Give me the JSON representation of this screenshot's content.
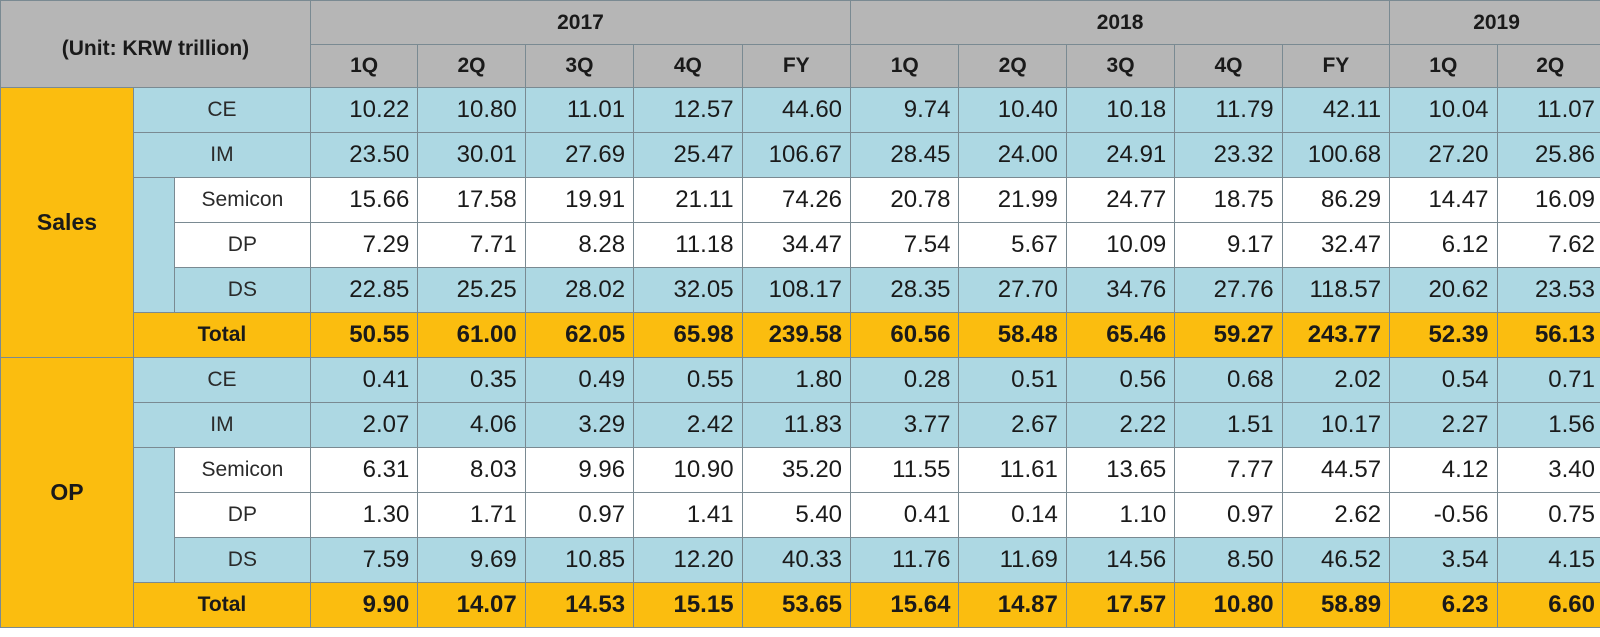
{
  "chart_data": {
    "type": "table",
    "unit_label": "(Unit: KRW trillion)",
    "years": [
      {
        "label": "2017",
        "span": 5
      },
      {
        "label": "2018",
        "span": 5
      },
      {
        "label": "2019",
        "span": 2
      }
    ],
    "columns": [
      "1Q",
      "2Q",
      "3Q",
      "4Q",
      "FY",
      "1Q",
      "2Q",
      "3Q",
      "4Q",
      "FY",
      "1Q",
      "2Q"
    ],
    "groups": [
      {
        "label": "Sales",
        "rows": [
          {
            "label": "CE",
            "kind": "main",
            "values": [
              "10.22",
              "10.80",
              "11.01",
              "12.57",
              "44.60",
              "9.74",
              "10.40",
              "10.18",
              "11.79",
              "42.11",
              "10.04",
              "11.07"
            ]
          },
          {
            "label": "IM",
            "kind": "main",
            "values": [
              "23.50",
              "30.01",
              "27.69",
              "25.47",
              "106.67",
              "28.45",
              "24.00",
              "24.91",
              "23.32",
              "100.68",
              "27.20",
              "25.86"
            ]
          },
          {
            "label": "Semicon",
            "kind": "sub",
            "values": [
              "15.66",
              "17.58",
              "19.91",
              "21.11",
              "74.26",
              "20.78",
              "21.99",
              "24.77",
              "18.75",
              "86.29",
              "14.47",
              "16.09"
            ]
          },
          {
            "label": "DP",
            "kind": "sub",
            "values": [
              "7.29",
              "7.71",
              "8.28",
              "11.18",
              "34.47",
              "7.54",
              "5.67",
              "10.09",
              "9.17",
              "32.47",
              "6.12",
              "7.62"
            ]
          },
          {
            "label": "DS",
            "kind": "sub-total",
            "values": [
              "22.85",
              "25.25",
              "28.02",
              "32.05",
              "108.17",
              "28.35",
              "27.70",
              "34.76",
              "27.76",
              "118.57",
              "20.62",
              "23.53"
            ]
          },
          {
            "label": "Total",
            "kind": "total",
            "values": [
              "50.55",
              "61.00",
              "62.05",
              "65.98",
              "239.58",
              "60.56",
              "58.48",
              "65.46",
              "59.27",
              "243.77",
              "52.39",
              "56.13"
            ]
          }
        ]
      },
      {
        "label": "OP",
        "rows": [
          {
            "label": "CE",
            "kind": "main",
            "values": [
              "0.41",
              "0.35",
              "0.49",
              "0.55",
              "1.80",
              "0.28",
              "0.51",
              "0.56",
              "0.68",
              "2.02",
              "0.54",
              "0.71"
            ]
          },
          {
            "label": "IM",
            "kind": "main",
            "values": [
              "2.07",
              "4.06",
              "3.29",
              "2.42",
              "11.83",
              "3.77",
              "2.67",
              "2.22",
              "1.51",
              "10.17",
              "2.27",
              "1.56"
            ]
          },
          {
            "label": "Semicon",
            "kind": "sub",
            "values": [
              "6.31",
              "8.03",
              "9.96",
              "10.90",
              "35.20",
              "11.55",
              "11.61",
              "13.65",
              "7.77",
              "44.57",
              "4.12",
              "3.40"
            ]
          },
          {
            "label": "DP",
            "kind": "sub",
            "values": [
              "1.30",
              "1.71",
              "0.97",
              "1.41",
              "5.40",
              "0.41",
              "0.14",
              "1.10",
              "0.97",
              "2.62",
              "-0.56",
              "0.75"
            ]
          },
          {
            "label": "DS",
            "kind": "sub-total",
            "values": [
              "7.59",
              "9.69",
              "10.85",
              "12.20",
              "40.33",
              "11.76",
              "11.69",
              "14.56",
              "8.50",
              "46.52",
              "3.54",
              "4.15"
            ]
          },
          {
            "label": "Total",
            "kind": "total",
            "values": [
              "9.90",
              "14.07",
              "14.53",
              "15.15",
              "53.65",
              "15.64",
              "14.87",
              "17.57",
              "10.80",
              "58.89",
              "6.23",
              "6.60"
            ]
          }
        ]
      }
    ],
    "colors": {
      "header_gray": "#b6b6b6",
      "group_yellow": "#fbbd0f",
      "row_blue": "#add8e3",
      "row_white": "#ffffff",
      "border": "#7a8a92"
    }
  }
}
